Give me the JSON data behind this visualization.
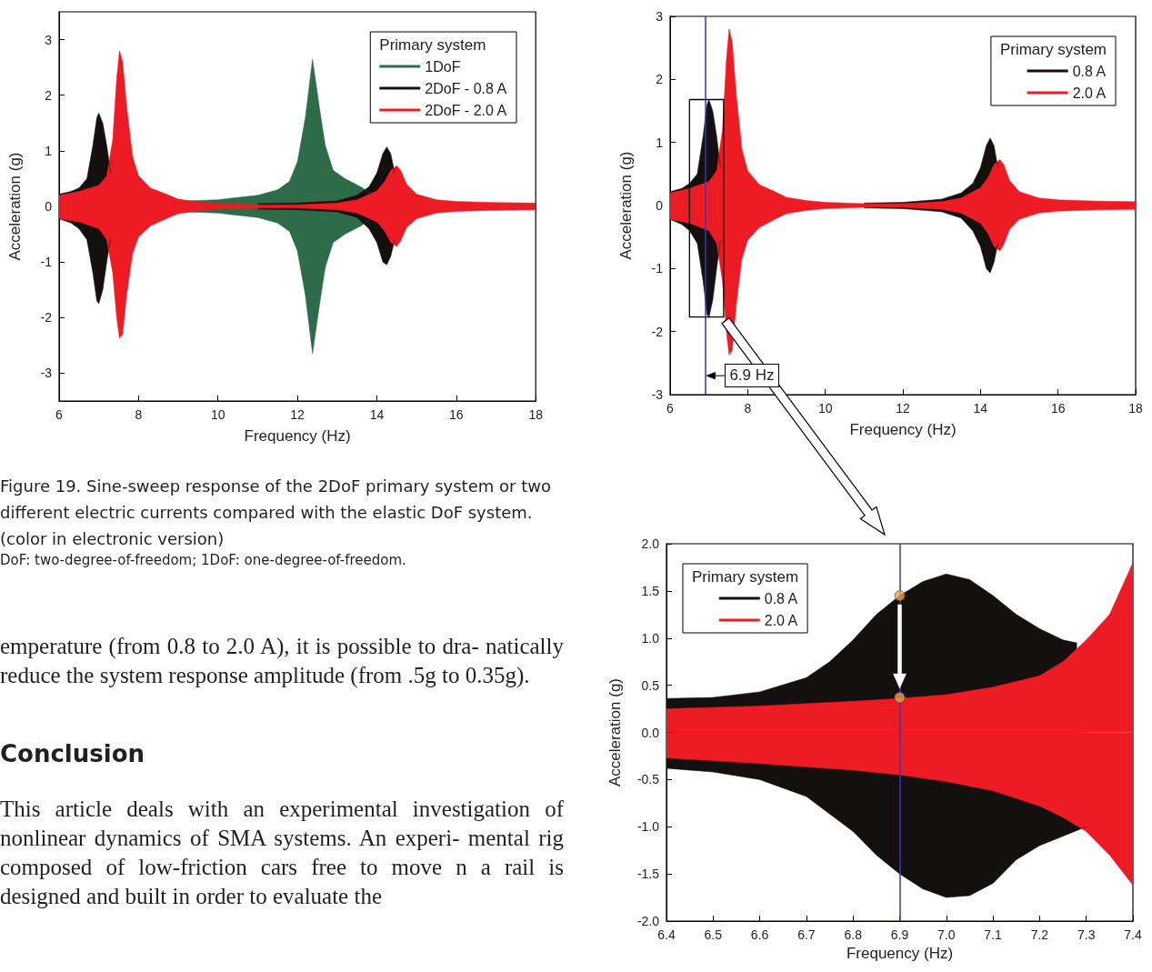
{
  "chart_data": [
    {
      "type": "area",
      "xlabel": "Frequency (Hz)",
      "ylabel": "Acceleration (g)",
      "legend_title": "Primary system",
      "legend": "top right",
      "grid": false,
      "xlim": [
        6,
        18
      ],
      "xticks": [
        6,
        8,
        10,
        12,
        14,
        16,
        18
      ],
      "ylim": [
        -3.5,
        3.5
      ],
      "yticks": [
        -3,
        -2,
        -1,
        0,
        1,
        2,
        3
      ],
      "series": [
        {
          "name": "1DoF",
          "color": "#2e6b48",
          "x": [
            9.2,
            10,
            11,
            11.5,
            11.8,
            12.0,
            12.2,
            12.38,
            12.55,
            12.7,
            12.9,
            13.2,
            13.6,
            13.9
          ],
          "values": [
            0.1,
            0.12,
            0.2,
            0.3,
            0.45,
            0.8,
            1.6,
            2.65,
            1.8,
            1.1,
            0.65,
            0.5,
            0.35,
            0.2
          ]
        },
        {
          "color": "#2e6b48",
          "x": [
            9.2,
            10,
            11,
            11.5,
            11.8,
            12.0,
            12.2,
            12.38,
            12.55,
            12.7,
            12.9,
            13.2,
            13.6,
            13.9
          ],
          "values": [
            -0.1,
            -0.12,
            -0.2,
            -0.3,
            -0.45,
            -0.8,
            -1.6,
            -2.65,
            -1.8,
            -1.1,
            -0.65,
            -0.5,
            -0.35,
            -0.2
          ]
        },
        {
          "name": "2DoF - 0.8 A",
          "color": "#141010",
          "x": [
            6,
            6.3,
            6.5,
            6.7,
            6.85,
            6.95,
            7.0,
            7.1,
            7.2,
            7.3,
            7.4,
            11,
            12,
            13,
            13.5,
            13.8,
            14.0,
            14.15,
            14.25,
            14.35,
            14.45
          ],
          "values": [
            0.22,
            0.27,
            0.33,
            0.5,
            1.1,
            1.6,
            1.68,
            1.5,
            1.1,
            0.6,
            null,
            0.05,
            0.06,
            0.1,
            0.2,
            0.35,
            0.6,
            0.95,
            1.07,
            0.95,
            0.6
          ]
        },
        {
          "color": "#141010",
          "x": [
            6,
            6.3,
            6.5,
            6.7,
            6.85,
            6.95,
            7.0,
            7.1,
            7.2,
            7.3,
            7.4,
            11,
            12,
            13,
            13.5,
            13.8,
            14.0,
            14.15,
            14.25,
            14.35,
            14.45
          ],
          "values": [
            -0.22,
            -0.3,
            -0.4,
            -0.6,
            -1.2,
            -1.7,
            -1.75,
            -1.5,
            -1.0,
            -0.55,
            null,
            -0.05,
            -0.06,
            -0.1,
            -0.2,
            -0.4,
            -0.65,
            -1.0,
            -1.05,
            -0.9,
            -0.6
          ]
        },
        {
          "name": "2DoF - 2.0 A",
          "color": "#ed1c24",
          "x": [
            6,
            6.5,
            7.0,
            7.2,
            7.35,
            7.45,
            7.52,
            7.6,
            7.7,
            7.85,
            8.0,
            8.3,
            8.7,
            9.0,
            9.5,
            10,
            11,
            12,
            13,
            13.5,
            14,
            14.2,
            14.35,
            14.5,
            14.6,
            14.75,
            15,
            15.5,
            16,
            17,
            18
          ],
          "values": [
            0.2,
            0.27,
            0.38,
            0.55,
            1.2,
            2.3,
            2.8,
            2.6,
            1.8,
            0.9,
            0.55,
            0.33,
            0.22,
            0.13,
            0.08,
            0.05,
            0.03,
            0.03,
            0.06,
            0.12,
            0.28,
            0.45,
            0.65,
            0.73,
            0.65,
            0.4,
            0.22,
            0.12,
            0.09,
            0.07,
            0.06
          ]
        },
        {
          "color": "#ed1c24",
          "x": [
            6,
            6.5,
            7.0,
            7.2,
            7.35,
            7.45,
            7.52,
            7.6,
            7.7,
            7.85,
            8.0,
            8.3,
            8.7,
            9.0,
            9.5,
            10,
            11,
            12,
            13,
            13.5,
            14,
            14.2,
            14.35,
            14.5,
            14.6,
            14.75,
            15,
            15.5,
            16,
            17,
            18
          ],
          "values": [
            -0.22,
            -0.28,
            -0.4,
            -0.6,
            -1.2,
            -2.0,
            -2.37,
            -2.3,
            -1.6,
            -0.85,
            -0.55,
            -0.35,
            -0.22,
            -0.13,
            -0.08,
            -0.05,
            -0.03,
            -0.03,
            -0.06,
            -0.12,
            -0.28,
            -0.45,
            -0.65,
            -0.72,
            -0.62,
            -0.38,
            -0.22,
            -0.12,
            -0.09,
            -0.07,
            -0.06
          ]
        }
      ],
      "annotations": [
        "Figure 19. Sine-sweep response of the 2DoF primary system or two different electric currents compared with the elastic DoF system. (color in electronic version)",
        "DoF: two-degree-of-freedom; 1DoF: one-degree-of-freedom.",
        "emperature (from 0.8 to 2.0 A), it is possible to dra- natically reduce the system response amplitude (from .5g to 0.35g).",
        "Conclusion",
        "This article deals with an experimental investigation of nonlinear dynamics of SMA systems. An experi- mental rig composed of low-friction cars free to move n a rail is designed and built in order to evaluate the"
      ]
    },
    {
      "type": "area",
      "xlabel": "Frequency (Hz)",
      "ylabel": "Acceleration (g)",
      "legend_title": "Primary system",
      "legend": "top right",
      "grid": false,
      "xlim": [
        6,
        18
      ],
      "xticks": [
        6,
        8,
        10,
        12,
        14,
        16,
        18
      ],
      "ylim": [
        -3,
        3
      ],
      "yticks": [
        -3,
        -2,
        -1,
        0,
        1,
        2,
        3
      ],
      "ref_lines": [
        {
          "axis": "x",
          "value": 6.9,
          "label": "6.9 Hz",
          "color": "#3a3aa8"
        }
      ],
      "series": [
        {
          "name": "0.8 A",
          "color": "#141010",
          "x": [
            6,
            6.3,
            6.5,
            6.7,
            6.85,
            6.95,
            7.0,
            7.1,
            7.2,
            7.3,
            7.4,
            11,
            12,
            13,
            13.5,
            13.8,
            14.0,
            14.15,
            14.25,
            14.35,
            14.45
          ],
          "values": [
            0.22,
            0.27,
            0.35,
            0.5,
            1.1,
            1.6,
            1.68,
            1.5,
            1.1,
            0.6,
            null,
            0.04,
            0.05,
            0.1,
            0.2,
            0.35,
            0.6,
            0.95,
            1.07,
            0.95,
            0.6
          ]
        },
        {
          "color": "#141010",
          "x": [
            6,
            6.3,
            6.5,
            6.7,
            6.85,
            6.95,
            7.0,
            7.1,
            7.2,
            7.3,
            7.4,
            11,
            12,
            13,
            13.5,
            13.8,
            14.0,
            14.15,
            14.25,
            14.35,
            14.45
          ],
          "values": [
            -0.22,
            -0.3,
            -0.4,
            -0.6,
            -1.2,
            -1.72,
            -1.78,
            -1.5,
            -1.0,
            -0.55,
            null,
            -0.04,
            -0.05,
            -0.1,
            -0.2,
            -0.4,
            -0.65,
            -1.0,
            -1.07,
            -0.9,
            -0.6
          ]
        },
        {
          "name": "2.0 A",
          "color": "#ed1c24",
          "x": [
            6,
            6.5,
            7.0,
            7.2,
            7.35,
            7.45,
            7.52,
            7.6,
            7.7,
            7.85,
            8.0,
            8.3,
            8.7,
            9.0,
            9.5,
            10,
            11,
            12,
            13,
            13.5,
            14,
            14.2,
            14.35,
            14.5,
            14.6,
            14.75,
            15,
            15.5,
            16,
            17,
            18
          ],
          "values": [
            0.2,
            0.27,
            0.38,
            0.55,
            1.2,
            2.3,
            2.8,
            2.6,
            1.8,
            0.9,
            0.55,
            0.33,
            0.22,
            0.13,
            0.08,
            0.05,
            0.03,
            0.03,
            0.06,
            0.12,
            0.28,
            0.45,
            0.65,
            0.73,
            0.65,
            0.4,
            0.22,
            0.12,
            0.09,
            0.07,
            0.06
          ]
        },
        {
          "color": "#ed1c24",
          "x": [
            6,
            6.5,
            7.0,
            7.2,
            7.35,
            7.45,
            7.52,
            7.6,
            7.7,
            7.85,
            8.0,
            8.3,
            8.7,
            9.0,
            9.5,
            10,
            11,
            12,
            13,
            13.5,
            14,
            14.2,
            14.35,
            14.5,
            14.6,
            14.75,
            15,
            15.5,
            16,
            17,
            18
          ],
          "values": [
            -0.22,
            -0.28,
            -0.4,
            -0.6,
            -1.2,
            -2.0,
            -2.37,
            -2.3,
            -1.6,
            -0.85,
            -0.55,
            -0.35,
            -0.22,
            -0.13,
            -0.08,
            -0.05,
            -0.03,
            -0.03,
            -0.06,
            -0.12,
            -0.28,
            -0.45,
            -0.65,
            -0.72,
            -0.62,
            -0.38,
            -0.22,
            -0.12,
            -0.09,
            -0.07,
            -0.06
          ]
        }
      ]
    },
    {
      "type": "area",
      "xlabel": "Frequency (Hz)",
      "ylabel": "Acceleration (g)",
      "legend_title": "Primary system",
      "legend": "top left",
      "grid": false,
      "xlim": [
        6.4,
        7.4
      ],
      "xticks": [
        6.4,
        6.5,
        6.6,
        6.7,
        6.8,
        6.9,
        {
          "value": 7,
          "label": "7.0"
        },
        7.1,
        7.2,
        7.3,
        7.4
      ],
      "ylim": [
        -2,
        2
      ],
      "yticks": [
        {
          "value": -2,
          "label": "-2.0"
        },
        -1.5,
        {
          "value": -1,
          "label": "-1.0"
        },
        -0.5,
        {
          "value": 0,
          "label": "0.0"
        },
        0.5,
        {
          "value": 1,
          "label": "1.0"
        },
        1.5,
        {
          "value": 2,
          "label": "2.0"
        }
      ],
      "ref_lines": [
        {
          "axis": "x",
          "value": 6.9,
          "color": "#3a3aa8"
        }
      ],
      "series": [
        {
          "name": "0.8 A",
          "color": "#141010",
          "x": [
            6.4,
            6.5,
            6.55,
            6.6,
            6.7,
            6.75,
            6.8,
            6.85,
            6.9,
            6.95,
            7.0,
            7.05,
            7.1,
            7.15,
            7.2,
            7.25,
            7.28
          ],
          "values": [
            0.36,
            0.37,
            0.4,
            0.43,
            0.58,
            0.75,
            0.98,
            1.25,
            1.45,
            1.6,
            1.68,
            1.62,
            1.45,
            1.25,
            1.1,
            0.98,
            0.95
          ]
        },
        {
          "color": "#141010",
          "x": [
            6.4,
            6.5,
            6.6,
            6.7,
            6.8,
            6.85,
            6.9,
            6.95,
            7.0,
            7.05,
            7.1,
            7.15,
            7.2,
            7.25,
            7.3
          ],
          "values": [
            -0.38,
            -0.42,
            -0.5,
            -0.68,
            -1.05,
            -1.3,
            -1.5,
            -1.66,
            -1.75,
            -1.73,
            -1.6,
            -1.35,
            -1.2,
            -1.1,
            -1.0
          ]
        },
        {
          "name": "2.0 A",
          "color": "#ed1c24",
          "x": [
            6.4,
            6.6,
            6.8,
            6.9,
            7.0,
            7.1,
            7.2,
            7.25,
            7.3,
            7.35,
            7.4
          ],
          "values": [
            0.25,
            0.28,
            0.33,
            0.36,
            0.4,
            0.48,
            0.6,
            0.75,
            0.98,
            1.25,
            1.8
          ]
        },
        {
          "color": "#ed1c24",
          "x": [
            6.4,
            6.6,
            6.8,
            6.9,
            7.0,
            7.1,
            7.2,
            7.25,
            7.3,
            7.35,
            7.4
          ],
          "values": [
            -0.27,
            -0.33,
            -0.4,
            -0.45,
            -0.52,
            -0.62,
            -0.78,
            -0.9,
            -1.05,
            -1.3,
            -1.62
          ]
        },
        {
          "type": "scatter",
          "marker": "circle",
          "color": "#e8a050",
          "x": [
            6.9,
            6.9
          ],
          "values": [
            1.45,
            0.37
          ]
        }
      ]
    }
  ]
}
